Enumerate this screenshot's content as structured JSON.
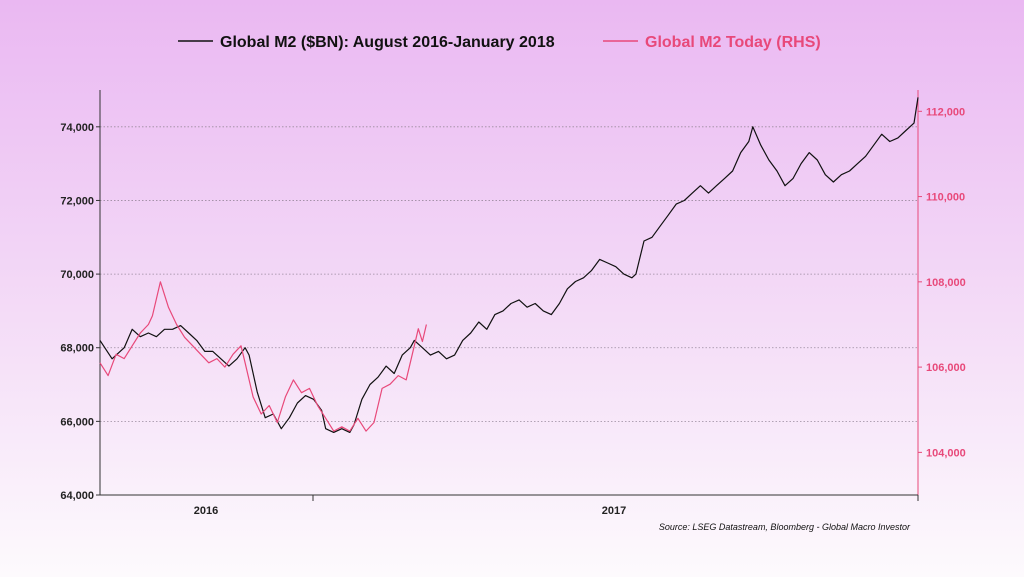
{
  "chart_data": {
    "type": "line",
    "legend": [
      {
        "name": "Global M2 ($BN): August 2016-January 2018",
        "color": "#111111"
      },
      {
        "name": "Global M2 Today (RHS)",
        "color": "#e8497a"
      }
    ],
    "legend_placement": "top-center",
    "grid": "horizontal-dotted",
    "x_axis": {
      "categories": [
        "2016",
        "2017"
      ]
    },
    "y_left": {
      "range": [
        64000,
        75000
      ],
      "ticks": [
        "64,000",
        "66,000",
        "68,000",
        "70,000",
        "72,000",
        "74,000"
      ]
    },
    "y_right": {
      "range": [
        103000,
        112500
      ],
      "ticks": [
        "104,000",
        "106,000",
        "108,000",
        "110,000",
        "112,000"
      ],
      "color": "#e8497a"
    },
    "series": [
      {
        "name": "Global M2 ($BN): August 2016-January 2018",
        "axis": "left",
        "color": "#111111",
        "points": [
          [
            0,
            68200
          ],
          [
            3,
            67700
          ],
          [
            6,
            68000
          ],
          [
            8,
            68500
          ],
          [
            10,
            68300
          ],
          [
            12,
            68400
          ],
          [
            14,
            68300
          ],
          [
            16,
            68500
          ],
          [
            18,
            68500
          ],
          [
            20,
            68600
          ],
          [
            22,
            68400
          ],
          [
            24,
            68200
          ],
          [
            26,
            67900
          ],
          [
            28,
            67900
          ],
          [
            30,
            67700
          ],
          [
            32,
            67500
          ],
          [
            34,
            67700
          ],
          [
            36,
            68000
          ],
          [
            37,
            67800
          ],
          [
            39,
            66800
          ],
          [
            41,
            66100
          ],
          [
            43,
            66200
          ],
          [
            45,
            65800
          ],
          [
            47,
            66100
          ],
          [
            49,
            66500
          ],
          [
            51,
            66700
          ],
          [
            53,
            66600
          ],
          [
            55,
            66300
          ],
          [
            56,
            65800
          ],
          [
            58,
            65700
          ],
          [
            60,
            65800
          ],
          [
            62,
            65700
          ],
          [
            63,
            65900
          ],
          [
            65,
            66600
          ],
          [
            67,
            67000
          ],
          [
            69,
            67200
          ],
          [
            71,
            67500
          ],
          [
            73,
            67300
          ],
          [
            75,
            67800
          ],
          [
            77,
            68000
          ],
          [
            78,
            68200
          ],
          [
            80,
            68000
          ],
          [
            82,
            67800
          ],
          [
            84,
            67900
          ],
          [
            86,
            67700
          ],
          [
            88,
            67800
          ],
          [
            90,
            68200
          ],
          [
            92,
            68400
          ],
          [
            94,
            68700
          ],
          [
            96,
            68500
          ],
          [
            98,
            68900
          ],
          [
            100,
            69000
          ],
          [
            102,
            69200
          ],
          [
            104,
            69300
          ],
          [
            106,
            69100
          ],
          [
            108,
            69200
          ],
          [
            110,
            69000
          ],
          [
            112,
            68900
          ],
          [
            114,
            69200
          ],
          [
            116,
            69600
          ],
          [
            118,
            69800
          ],
          [
            120,
            69900
          ],
          [
            122,
            70100
          ],
          [
            124,
            70400
          ],
          [
            126,
            70300
          ],
          [
            128,
            70200
          ],
          [
            130,
            70000
          ],
          [
            132,
            69900
          ],
          [
            133,
            70000
          ],
          [
            135,
            70900
          ],
          [
            137,
            71000
          ],
          [
            139,
            71300
          ],
          [
            141,
            71600
          ],
          [
            143,
            71900
          ],
          [
            145,
            72000
          ],
          [
            147,
            72200
          ],
          [
            149,
            72400
          ],
          [
            151,
            72200
          ],
          [
            153,
            72400
          ],
          [
            155,
            72600
          ],
          [
            157,
            72800
          ],
          [
            159,
            73300
          ],
          [
            161,
            73600
          ],
          [
            162,
            74000
          ],
          [
            164,
            73500
          ],
          [
            166,
            73100
          ],
          [
            168,
            72800
          ],
          [
            170,
            72400
          ],
          [
            172,
            72600
          ],
          [
            174,
            73000
          ],
          [
            176,
            73300
          ],
          [
            178,
            73100
          ],
          [
            180,
            72700
          ],
          [
            182,
            72500
          ],
          [
            184,
            72700
          ],
          [
            186,
            72800
          ],
          [
            188,
            73000
          ],
          [
            190,
            73200
          ],
          [
            192,
            73500
          ],
          [
            194,
            73800
          ],
          [
            196,
            73600
          ],
          [
            198,
            73700
          ],
          [
            200,
            73900
          ],
          [
            202,
            74100
          ],
          [
            203,
            74800
          ]
        ]
      },
      {
        "name": "Global M2 Today (RHS)",
        "axis": "right",
        "color": "#e8497a",
        "points": [
          [
            0,
            106100
          ],
          [
            2,
            105800
          ],
          [
            4,
            106300
          ],
          [
            6,
            106200
          ],
          [
            8,
            106500
          ],
          [
            10,
            106800
          ],
          [
            12,
            107000
          ],
          [
            13,
            107200
          ],
          [
            14,
            107600
          ],
          [
            15,
            108000
          ],
          [
            17,
            107400
          ],
          [
            19,
            107000
          ],
          [
            21,
            106700
          ],
          [
            23,
            106500
          ],
          [
            25,
            106300
          ],
          [
            27,
            106100
          ],
          [
            29,
            106200
          ],
          [
            31,
            106000
          ],
          [
            33,
            106300
          ],
          [
            35,
            106500
          ],
          [
            36,
            106100
          ],
          [
            38,
            105300
          ],
          [
            40,
            104900
          ],
          [
            42,
            105100
          ],
          [
            44,
            104700
          ],
          [
            46,
            105300
          ],
          [
            48,
            105700
          ],
          [
            50,
            105400
          ],
          [
            52,
            105500
          ],
          [
            54,
            105100
          ],
          [
            56,
            104800
          ],
          [
            58,
            104500
          ],
          [
            60,
            104600
          ],
          [
            62,
            104500
          ],
          [
            64,
            104800
          ],
          [
            66,
            104500
          ],
          [
            68,
            104700
          ],
          [
            70,
            105500
          ],
          [
            72,
            105600
          ],
          [
            74,
            105800
          ],
          [
            76,
            105700
          ],
          [
            78,
            106500
          ],
          [
            79,
            106900
          ],
          [
            80,
            106600
          ],
          [
            81,
            107000
          ]
        ]
      }
    ],
    "source": "Source: LSEG Datastream, Bloomberg - Global Macro Investor"
  }
}
